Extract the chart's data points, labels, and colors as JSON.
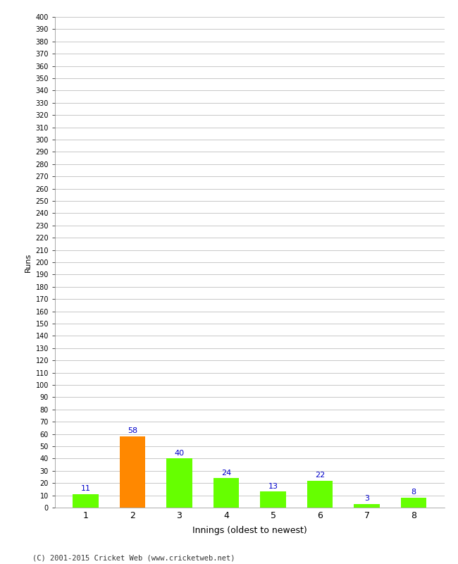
{
  "categories": [
    "1",
    "2",
    "3",
    "4",
    "5",
    "6",
    "7",
    "8"
  ],
  "values": [
    11,
    58,
    40,
    24,
    13,
    22,
    3,
    8
  ],
  "bar_colors": [
    "#66ff00",
    "#ff8800",
    "#66ff00",
    "#66ff00",
    "#66ff00",
    "#66ff00",
    "#66ff00",
    "#66ff00"
  ],
  "xlabel": "Innings (oldest to newest)",
  "ylabel": "Runs",
  "ylim": [
    0,
    400
  ],
  "label_color": "#0000cc",
  "background_color": "#ffffff",
  "grid_color": "#c8c8c8",
  "footer": "(C) 2001-2015 Cricket Web (www.cricketweb.net)",
  "bar_width": 0.55
}
